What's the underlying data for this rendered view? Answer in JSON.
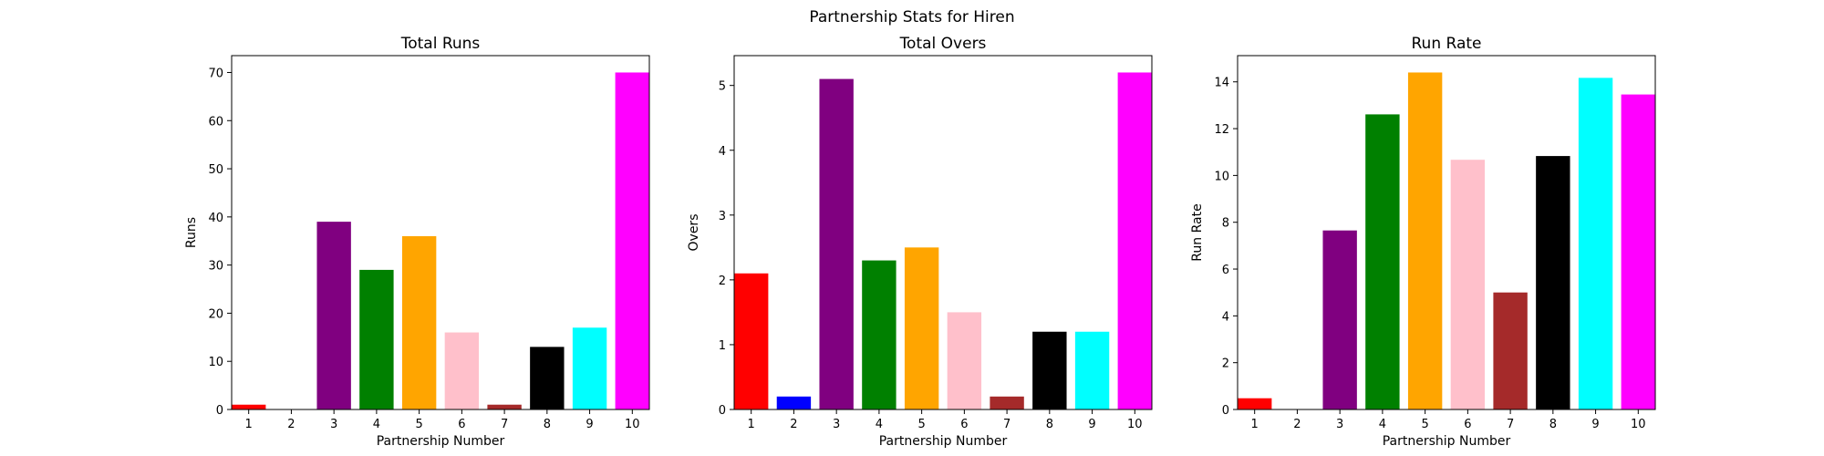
{
  "figure": {
    "suptitle": "Partnership Stats for Hiren"
  },
  "chart_data": [
    {
      "type": "bar",
      "title": "Total Runs",
      "xlabel": "Partnership Number",
      "ylabel": "Runs",
      "categories": [
        "1",
        "2",
        "3",
        "4",
        "5",
        "6",
        "7",
        "8",
        "9",
        "10"
      ],
      "values": [
        1,
        0,
        39,
        29,
        36,
        16,
        1,
        13,
        17,
        70
      ],
      "colors": [
        "#ff0000",
        "#0000ff",
        "#800080",
        "#008000",
        "#ffa500",
        "#ffc0cb",
        "#a52a2a",
        "#000000",
        "#00ffff",
        "#ff00ff"
      ],
      "ylim": [
        0,
        73.5
      ],
      "yticks": [
        0,
        10,
        20,
        30,
        40,
        50,
        60,
        70
      ],
      "grid": false
    },
    {
      "type": "bar",
      "title": "Total Overs",
      "xlabel": "Partnership Number",
      "ylabel": "Overs",
      "categories": [
        "1",
        "2",
        "3",
        "4",
        "5",
        "6",
        "7",
        "8",
        "9",
        "10"
      ],
      "values": [
        2.1,
        0.2,
        5.1,
        2.3,
        2.5,
        1.5,
        0.2,
        1.2,
        1.2,
        5.2
      ],
      "colors": [
        "#ff0000",
        "#0000ff",
        "#800080",
        "#008000",
        "#ffa500",
        "#ffc0cb",
        "#a52a2a",
        "#000000",
        "#00ffff",
        "#ff00ff"
      ],
      "ylim": [
        0,
        5.46
      ],
      "yticks": [
        0,
        1,
        2,
        3,
        4,
        5
      ],
      "grid": false
    },
    {
      "type": "bar",
      "title": "Run Rate",
      "xlabel": "Partnership Number",
      "ylabel": "Run Rate",
      "categories": [
        "1",
        "2",
        "3",
        "4",
        "5",
        "6",
        "7",
        "8",
        "9",
        "10"
      ],
      "values": [
        0.48,
        0.0,
        7.65,
        12.61,
        14.4,
        10.67,
        5.0,
        10.83,
        14.17,
        13.46
      ],
      "colors": [
        "#ff0000",
        "#0000ff",
        "#800080",
        "#008000",
        "#ffa500",
        "#ffc0cb",
        "#a52a2a",
        "#000000",
        "#00ffff",
        "#ff00ff"
      ],
      "ylim": [
        0,
        15.12
      ],
      "yticks": [
        0,
        2,
        4,
        6,
        8,
        10,
        12,
        14
      ],
      "grid": false
    }
  ]
}
